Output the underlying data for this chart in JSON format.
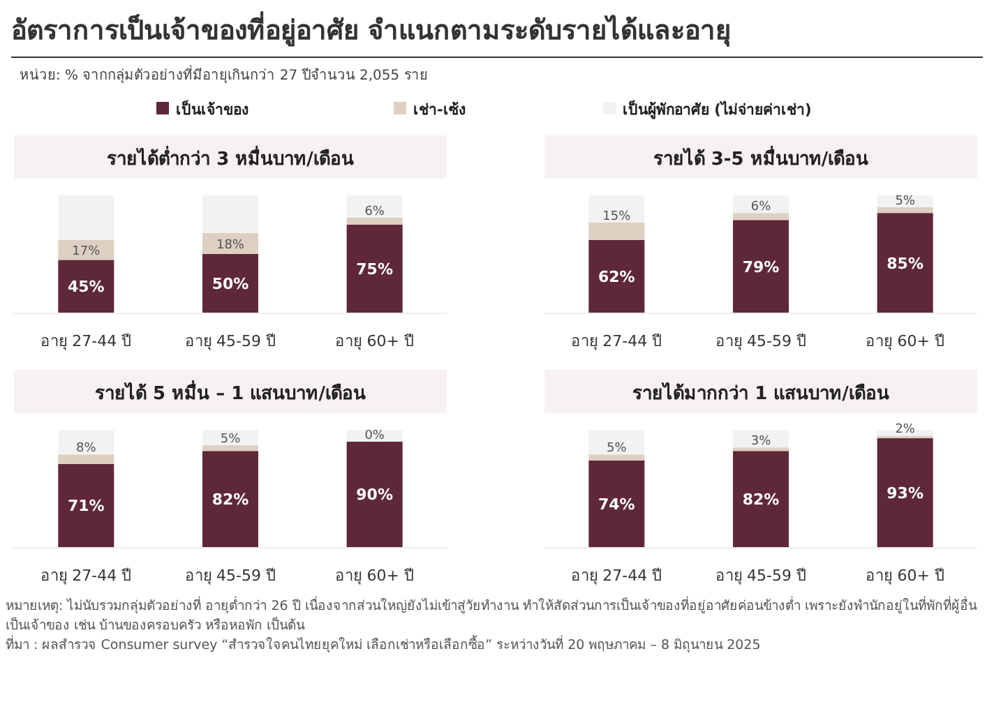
{
  "chart_data": [
    {
      "type": "other",
      "title": "อัตราการเป็นเจ้าของที่อยู่อาศัย จำแนกตามระดับรายได้และอายุ",
      "subtitle": "หน่วย: % จากกลุ่มตัวอย่างที่มีอายุเกินกว่า 27 ปีจำนวน 2,055 ราย",
      "annotations": [
        "หมายเหตุ: ไม่นับรวมกลุ่มตัวอย่างที่ อายุต่ำกว่า 26 ปี เนื่องจากส่วนใหญ่ยังไม่เข้าสู่วัยทำงาน ทำให้สัดส่วนการเป็นเจ้าของที่อยู่อาศัยค่อนข้างต่ำ เพราะยังพำนักอยู่ในที่พักที่ผู้อื่นเป็นเจ้าของ เช่น บ้านของครอบครัว หรือหอพัก เป็นต้น",
        "ที่มา : ผลสำรวจ Consumer survey “สำรวจใจคนไทยยุคใหม่ เลือกเช่าหรือเลือกซื้อ” ระหว่างวันที่ 20 พฤษภาคม – 8 มิถุนายน 2025"
      ]
    },
    {
      "type": "bar",
      "stacked": true,
      "legend": "top",
      "title": "รายได้ต่ำกว่า 3 หมื่นบาท/เดือน",
      "categories": [
        "อายุ 27-44 ปี",
        "อายุ 45-59 ปี",
        "อายุ 60+ ปี"
      ],
      "series": [
        {
          "name": "เป็นเจ้าของ",
          "color": "#5e2838",
          "values": [
            45,
            50,
            75
          ],
          "value_labels": [
            "45%",
            "50%",
            "75%"
          ]
        },
        {
          "name": "เช่า-เซ้ง",
          "color": "#ddd0c2",
          "values": [
            17,
            18,
            6
          ],
          "value_labels": [
            "17%",
            "18%",
            "6%"
          ]
        },
        {
          "name": "เป็นผู้พักอาศัย (ไม่จ่ายค่าเช่า)",
          "color": "#f2f2f2",
          "values": [
            38,
            32,
            19
          ]
        }
      ]
    },
    {
      "type": "bar",
      "stacked": true,
      "title": "รายได้ 3-5 หมื่นบาท/เดือน",
      "categories": [
        "อายุ 27-44 ปี",
        "อายุ 45-59 ปี",
        "อายุ 60+ ปี"
      ],
      "series": [
        {
          "color": "#5e2838",
          "values": [
            62,
            79,
            85
          ],
          "value_labels": [
            "62%",
            "79%",
            "85%"
          ]
        },
        {
          "color": "#ddd0c2",
          "values": [
            15,
            6,
            5
          ],
          "value_labels": [
            "15%",
            "6%",
            "5%"
          ]
        },
        {
          "color": "#f2f2f2",
          "values": [
            23,
            15,
            10
          ]
        }
      ]
    },
    {
      "type": "bar",
      "stacked": true,
      "title": "รายได้ 5 หมื่น – 1 แสนบาท/เดือน",
      "categories": [
        "อายุ 27-44 ปี",
        "อายุ 45-59 ปี",
        "อายุ 60+ ปี"
      ],
      "series": [
        {
          "color": "#5e2838",
          "values": [
            71,
            82,
            90
          ],
          "value_labels": [
            "71%",
            "82%",
            "90%"
          ]
        },
        {
          "color": "#ddd0c2",
          "values": [
            8,
            5,
            0
          ],
          "value_labels": [
            "8%",
            "5%",
            "0%"
          ]
        },
        {
          "color": "#f2f2f2",
          "values": [
            21,
            13,
            10
          ]
        }
      ]
    },
    {
      "type": "bar",
      "stacked": true,
      "title": "รายได้มากกว่า 1 แสนบาท/เดือน",
      "categories": [
        "อายุ 27-44 ปี",
        "อายุ 45-59 ปี",
        "อายุ 60+ ปี"
      ],
      "series": [
        {
          "color": "#5e2838",
          "values": [
            74,
            82,
            93
          ],
          "value_labels": [
            "74%",
            "82%",
            "93%"
          ]
        },
        {
          "color": "#ddd0c2",
          "values": [
            5,
            3,
            2
          ],
          "value_labels": [
            "5%",
            "3%",
            "2%"
          ]
        },
        {
          "color": "#f2f2f2",
          "values": [
            21,
            15,
            5
          ]
        }
      ]
    }
  ]
}
